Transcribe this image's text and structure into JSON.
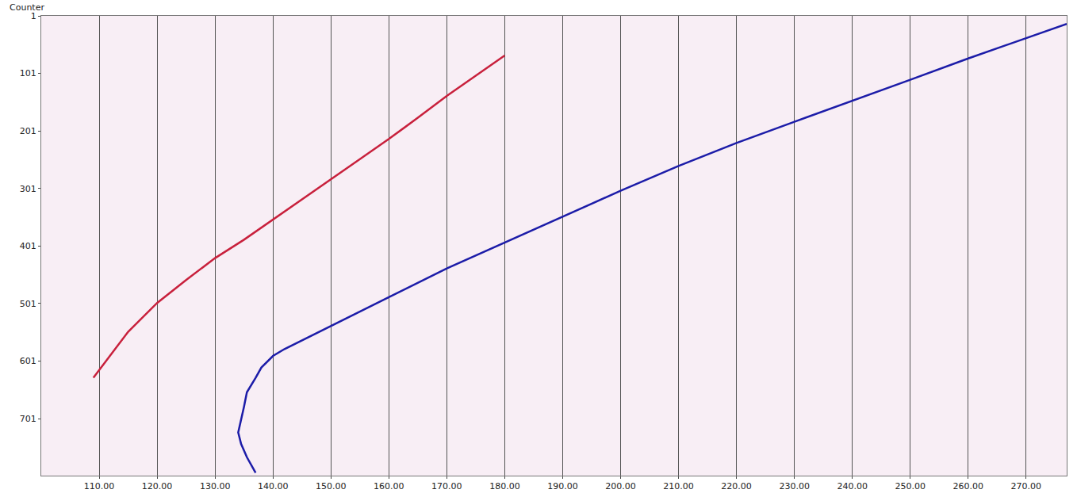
{
  "chart_data": {
    "type": "line",
    "y_label": "Counter",
    "grid": "x",
    "xlim": [
      100,
      277
    ],
    "ylim": [
      800,
      1
    ],
    "xticks": [
      {
        "value": 110,
        "label": "110.00"
      },
      {
        "value": 120,
        "label": "120.00"
      },
      {
        "value": 130,
        "label": "130.00"
      },
      {
        "value": 140,
        "label": "140.00"
      },
      {
        "value": 150,
        "label": "150.00"
      },
      {
        "value": 160,
        "label": "160.00"
      },
      {
        "value": 170,
        "label": "170.00"
      },
      {
        "value": 180,
        "label": "180.00"
      },
      {
        "value": 190,
        "label": "190.00"
      },
      {
        "value": 200,
        "label": "200.00"
      },
      {
        "value": 210,
        "label": "210.00"
      },
      {
        "value": 220,
        "label": "220.00"
      },
      {
        "value": 230,
        "label": "230.00"
      },
      {
        "value": 240,
        "label": "240.00"
      },
      {
        "value": 250,
        "label": "250.00"
      },
      {
        "value": 260,
        "label": "260.00"
      },
      {
        "value": 270,
        "label": "270.00"
      }
    ],
    "yticks": [
      1,
      101,
      201,
      301,
      401,
      501,
      601,
      701
    ],
    "series": [
      {
        "color": "#c8203c",
        "x": [
          180,
          175,
          170,
          165,
          160,
          155,
          150,
          145,
          140,
          135,
          130,
          125,
          120,
          115,
          109
        ],
        "values": [
          70,
          105,
          140,
          178,
          215,
          250,
          285,
          320,
          355,
          390,
          422,
          460,
          500,
          550,
          630
        ]
      },
      {
        "color": "#1c1ca8",
        "x": [
          277,
          270,
          260,
          250,
          240,
          230,
          220,
          210,
          200,
          190,
          180,
          170,
          160,
          155,
          150,
          145,
          142,
          140,
          138,
          137,
          135.5,
          135,
          134,
          134.5,
          135.5,
          137
        ],
        "values": [
          15,
          40,
          75,
          112,
          148,
          185,
          222,
          262,
          305,
          350,
          395,
          440,
          490,
          515,
          540,
          565,
          580,
          592,
          612,
          630,
          655,
          680,
          725,
          745,
          768,
          795
        ]
      }
    ]
  }
}
